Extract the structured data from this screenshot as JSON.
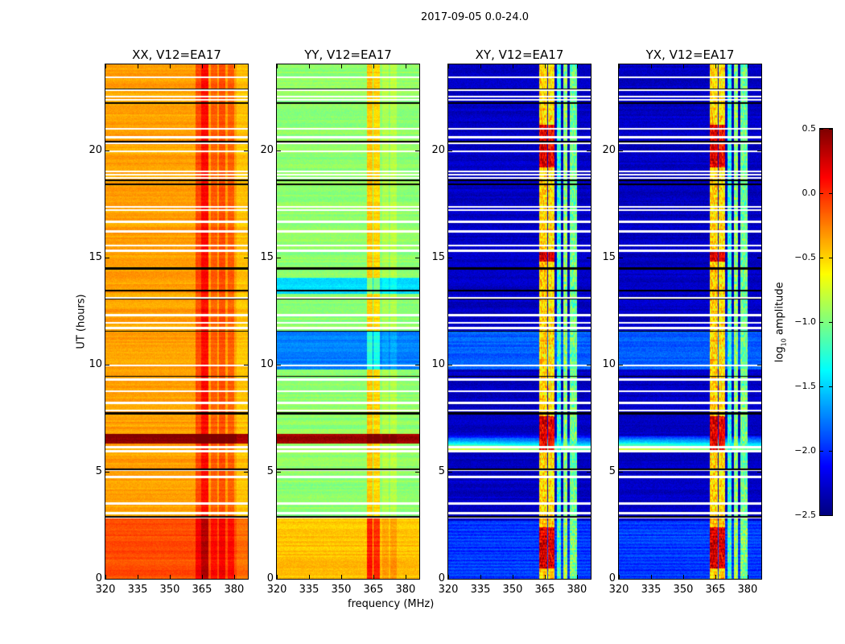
{
  "chart_data": {
    "type": "heatmap",
    "title": "2017-09-05 0.0-24.0",
    "xlabel": "frequency (MHz)",
    "ylabel": "UT (hours)",
    "xlim": [
      320,
      386.4
    ],
    "ylim": [
      0,
      24
    ],
    "xticks": [
      320,
      335,
      350,
      365,
      380
    ],
    "yticks": [
      0,
      5,
      10,
      15,
      20
    ],
    "colorbar": {
      "label_main": "log",
      "label_sub": "10",
      "label_rest": " amplitude",
      "range": [
        -2.5,
        0.5
      ],
      "ticks": [
        "0.5",
        "0.0",
        "−0.5",
        "−1.0",
        "−1.5",
        "−2.0",
        "−2.5"
      ],
      "tick_values": [
        0.5,
        0.0,
        -0.5,
        -1.0,
        -1.5,
        -2.0,
        -2.5
      ],
      "colormap": "jet"
    },
    "flagged_hours": [
      23.4,
      22.8,
      22.5,
      22.35,
      21.0,
      20.6,
      20.35,
      19.95,
      19.0,
      18.85,
      18.7,
      17.35,
      17.2,
      16.65,
      16.2,
      15.55,
      15.3,
      13.1,
      12.3,
      11.95,
      11.7,
      9.95,
      9.3,
      8.75,
      8.2,
      7.85,
      6.15,
      5.95,
      5.1,
      4.75,
      3.5,
      3.05,
      2.85
    ],
    "black_hours": [
      22.85,
      22.2,
      20.4,
      18.6,
      18.4,
      14.5,
      14.45,
      13.45,
      13.05,
      11.55,
      9.45,
      7.75,
      7.7,
      5.1,
      2.9
    ],
    "panels": [
      {
        "title": "XX, V12=EA17",
        "base": -0.35,
        "noise": 0.05,
        "segments": [
          {
            "t": [
              0,
              2.8
            ],
            "level": -0.1
          },
          {
            "t": [
              6.3,
              6.75
            ],
            "level": 0.45
          }
        ],
        "bands": [
          {
            "f": [
              362,
              364.5
            ],
            "add": 0.25
          },
          {
            "f": [
              364.5,
              368
            ],
            "add": 0.45
          },
          {
            "f": [
              369,
              372
            ],
            "add": 0.2
          },
          {
            "f": [
              373,
              376
            ],
            "add": 0.25
          },
          {
            "f": [
              377,
              380
            ],
            "add": 0.2
          },
          {
            "f": [
              381,
              386.4
            ],
            "add": -0.1
          }
        ]
      },
      {
        "title": "YY, V12=EA17",
        "base": -0.95,
        "noise": 0.06,
        "segments": [
          {
            "t": [
              0,
              2.8
            ],
            "level": -0.45
          },
          {
            "t": [
              9.75,
              11.55
            ],
            "level": -1.75
          },
          {
            "t": [
              13.3,
              14.05
            ],
            "level": -1.45
          },
          {
            "t": [
              6.3,
              6.75
            ],
            "level": 0.4
          }
        ],
        "bands": [
          {
            "f": [
              362,
              364.5
            ],
            "add": 0.5
          },
          {
            "f": [
              365,
              368
            ],
            "add": 0.45
          },
          {
            "f": [
              369,
              372
            ],
            "add": 0.1
          },
          {
            "f": [
              373,
              376
            ],
            "add": 0.12
          }
        ]
      },
      {
        "title": "XY, V12=EA17",
        "base": -2.3,
        "noise": 0.08,
        "segments": [
          {
            "t": [
              0,
              2.7
            ],
            "level": -2.0
          },
          {
            "t": [
              9.75,
              11.55
            ],
            "level": -1.85
          },
          {
            "t": [
              6.0,
              6.7
            ],
            "level": -1.2
          }
        ],
        "bands": [
          {
            "f": [
              362.5,
              366
            ],
            "set": -0.55
          },
          {
            "f": [
              366.5,
              369.5
            ],
            "set": -0.6
          },
          {
            "f": [
              370.5,
              372.5
            ],
            "set": -1.3
          },
          {
            "f": [
              373.5,
              375.5
            ],
            "set": -1.0
          },
          {
            "f": [
              376.5,
              380
            ],
            "set": -1.1
          }
        ]
      },
      {
        "title": "YX, V12=EA17",
        "base": -2.3,
        "noise": 0.08,
        "segments": [
          {
            "t": [
              0,
              2.7
            ],
            "level": -2.0
          },
          {
            "t": [
              9.75,
              11.55
            ],
            "level": -1.85
          },
          {
            "t": [
              6.0,
              6.7
            ],
            "level": -1.2
          }
        ],
        "bands": [
          {
            "f": [
              362.5,
              366
            ],
            "set": -0.55
          },
          {
            "f": [
              366.5,
              369.5
            ],
            "set": -0.6
          },
          {
            "f": [
              370.5,
              372.5
            ],
            "set": -1.3
          },
          {
            "f": [
              373.5,
              375.5
            ],
            "set": -1.0
          },
          {
            "f": [
              376.5,
              380
            ],
            "set": -1.1
          }
        ]
      }
    ]
  }
}
